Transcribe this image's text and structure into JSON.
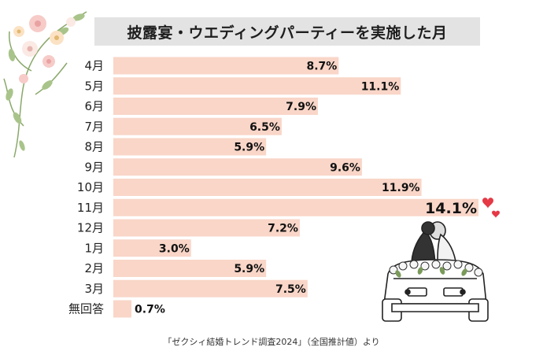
{
  "title": "披露宴・ウエディングパーティーを実施した月",
  "source": "「ゼクシィ結婚トレンド調査2024」（全国推計値）より",
  "chart_data": {
    "type": "bar",
    "orientation": "horizontal",
    "title": "披露宴・ウエディングパーティーを実施した月",
    "categories": [
      "4月",
      "5月",
      "6月",
      "7月",
      "8月",
      "9月",
      "10月",
      "11月",
      "12月",
      "1月",
      "2月",
      "3月",
      "無回答"
    ],
    "values": [
      8.7,
      11.1,
      7.9,
      6.5,
      5.9,
      9.6,
      11.9,
      14.1,
      7.2,
      3.0,
      5.9,
      7.5,
      0.7
    ],
    "labels": [
      "8.7%",
      "11.1%",
      "7.9%",
      "6.5%",
      "5.9%",
      "9.6%",
      "11.9%",
      "14.1%",
      "7.2%",
      "3.0%",
      "5.9%",
      "7.5%",
      "0.7%"
    ],
    "highlight_index": 7,
    "bar_color": "#f9d6c8",
    "xlim": [
      0,
      14.1
    ],
    "grid": false,
    "legend": "none"
  },
  "decorations": {
    "floral_icon": "floral-corner-icon",
    "hearts_icon": "hearts-icon",
    "couple_car_icon": "wedding-car-illustration"
  }
}
